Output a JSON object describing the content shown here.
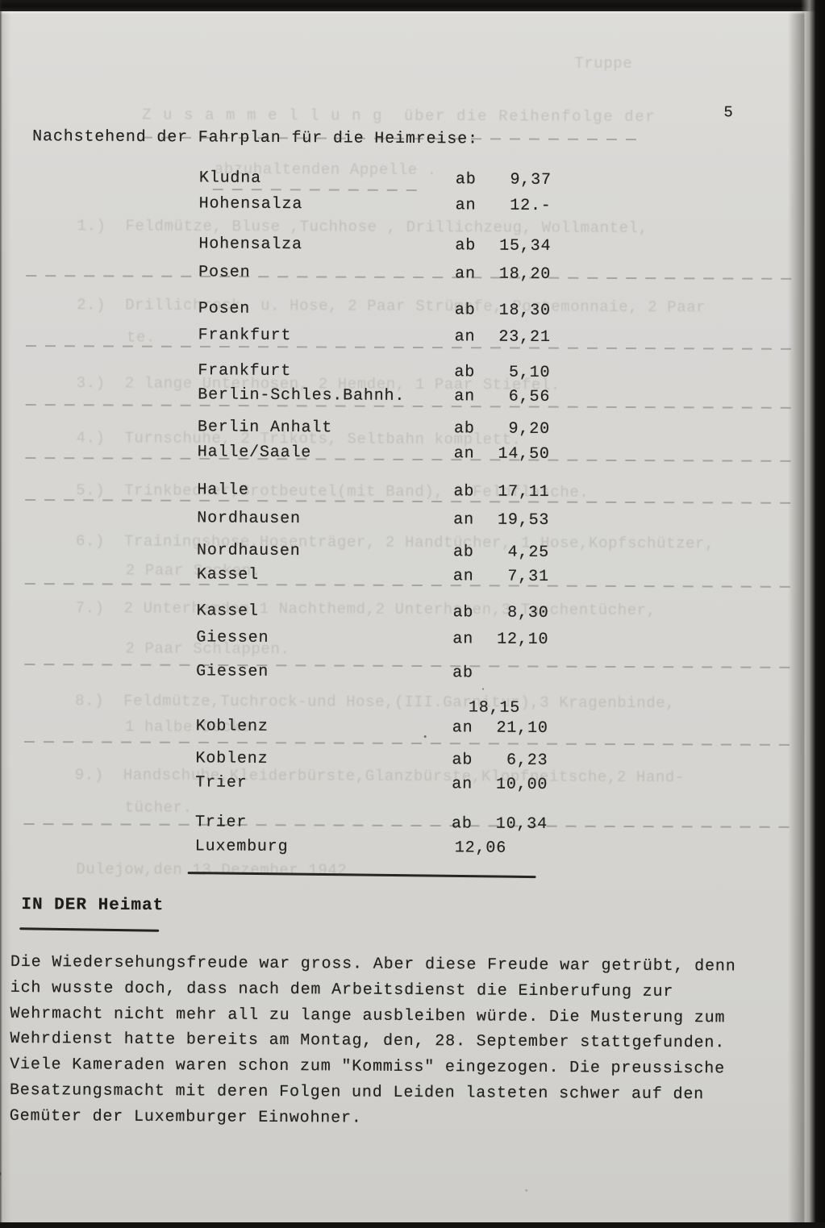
{
  "page": {
    "number": "5"
  },
  "intro": {
    "heading": "Nachstehend der Fahrplan für die Heimreise:"
  },
  "schedule": {
    "rows": [
      {
        "station": "Kludna",
        "label": "ab",
        "time": "9,37"
      },
      {
        "station": "Hohensalza",
        "label": "an",
        "time": "12.-"
      },
      {
        "station": "Hohensalza",
        "label": "ab",
        "time": "15,34"
      },
      {
        "station": "Posen",
        "label": "an",
        "time": "18,20"
      },
      {
        "station": "Posen",
        "label": "ab",
        "time": "18,30"
      },
      {
        "station": "Frankfurt",
        "label": "an",
        "time": "23,21"
      },
      {
        "station": "Frankfurt",
        "label": "ab",
        "time": "5,10"
      },
      {
        "station": "Berlin-Schles.Bahnh.",
        "label": "an",
        "time": "6,56"
      },
      {
        "station": "Berlin Anhalt",
        "label": "ab",
        "time": "9,20"
      },
      {
        "station": "Halle/Saale",
        "label": "an",
        "time": "14,50"
      },
      {
        "station": "Halle",
        "label": "ab",
        "time": "17,11"
      },
      {
        "station": "Nordhausen",
        "label": "an",
        "time": "19,53"
      },
      {
        "station": "Nordhausen",
        "label": "ab",
        "time": "4,25"
      },
      {
        "station": "Kassel",
        "label": "an",
        "time": "7,31"
      },
      {
        "station": "Kassel",
        "label": "ab",
        "time": "8,30"
      },
      {
        "station": "Giessen",
        "label": "an",
        "time": "12,10"
      },
      {
        "station": "Giessen",
        "label": "ab",
        "time": ""
      },
      {
        "station": "",
        "label": "",
        "time": "18,15"
      },
      {
        "station": "Koblenz",
        "label": "an",
        "time": "21,10"
      },
      {
        "station": "Koblenz",
        "label": "ab",
        "time": "6,23"
      },
      {
        "station": "Trier",
        "label": "an",
        "time": "10,00"
      },
      {
        "station": "Trier",
        "label": "ab",
        "time": "10,34"
      },
      {
        "station": "Luxemburg",
        "label": "",
        "time": "12,06"
      }
    ]
  },
  "section": {
    "heading": "IN DER Heimat"
  },
  "paragraph": {
    "lines": [
      "Die Wiedersehungsfreude war gross. Aber diese Freude war getrübt, denn",
      "ich wusste doch, dass nach dem Arbeitsdienst die Einberufung zur",
      "Wehrmacht nicht mehr all zu lange ausbleiben würde. Die Musterung zum",
      "Wehrdienst hatte bereits am Montag, den, 28. September stattgefunden.",
      "Viele Kameraden waren schon zum \"Kommiss\" eingezogen. Die preussische",
      "Besatzungsmacht mit deren Folgen und Leiden lasteten schwer auf den",
      "Gemüter der Luxemburger Einwohner."
    ]
  },
  "ghost": {
    "lines": [
      "Truppe",
      "Z u s a m m e l l u n g  über die Reihenfolge der",
      "abzuhaltenden Appelle .",
      "1.)  Feldmütze, Bluse ,Tuchhose , Drillichzeug, Wollmantel,",
      "2.)  Drillichrock- u. Hose, 2 Paar Strümpfe, Portemonnaie, 2 Paar",
      "te.",
      "3.)  2 lange Unterhosen, 2 Hemden, 1 Paar Stiefel.",
      "4.)  Turnschuhe, 2 Trikots, Seltbahn komplett.",
      "5.)  Trinkbecher,Brotbeutel(mit Band), 1 Feldflasche.",
      "6.)  Trainingshose,Hosenträger, 2 Handtücher, 1 Hose,Kopfschützer,",
      "2 Paar Socken.",
      "7.)  2 Unterhemden,1 Nachthemd,2 Unterhosen,3 Taschentücher,",
      "2 Paar Schlappen.",
      "8.)  Feldmütze,Tuchrock-und Hose,(III.Garnitur),3 Kragenbinde,",
      "1 halbe Decke.",
      "9.)  Handschuhe,Kleiderbürste,Glanzbürste,Klopfpeitsche,2 Hand-",
      "tücher.",
      "Dulejow,den 13.Dezember 1942"
    ]
  }
}
